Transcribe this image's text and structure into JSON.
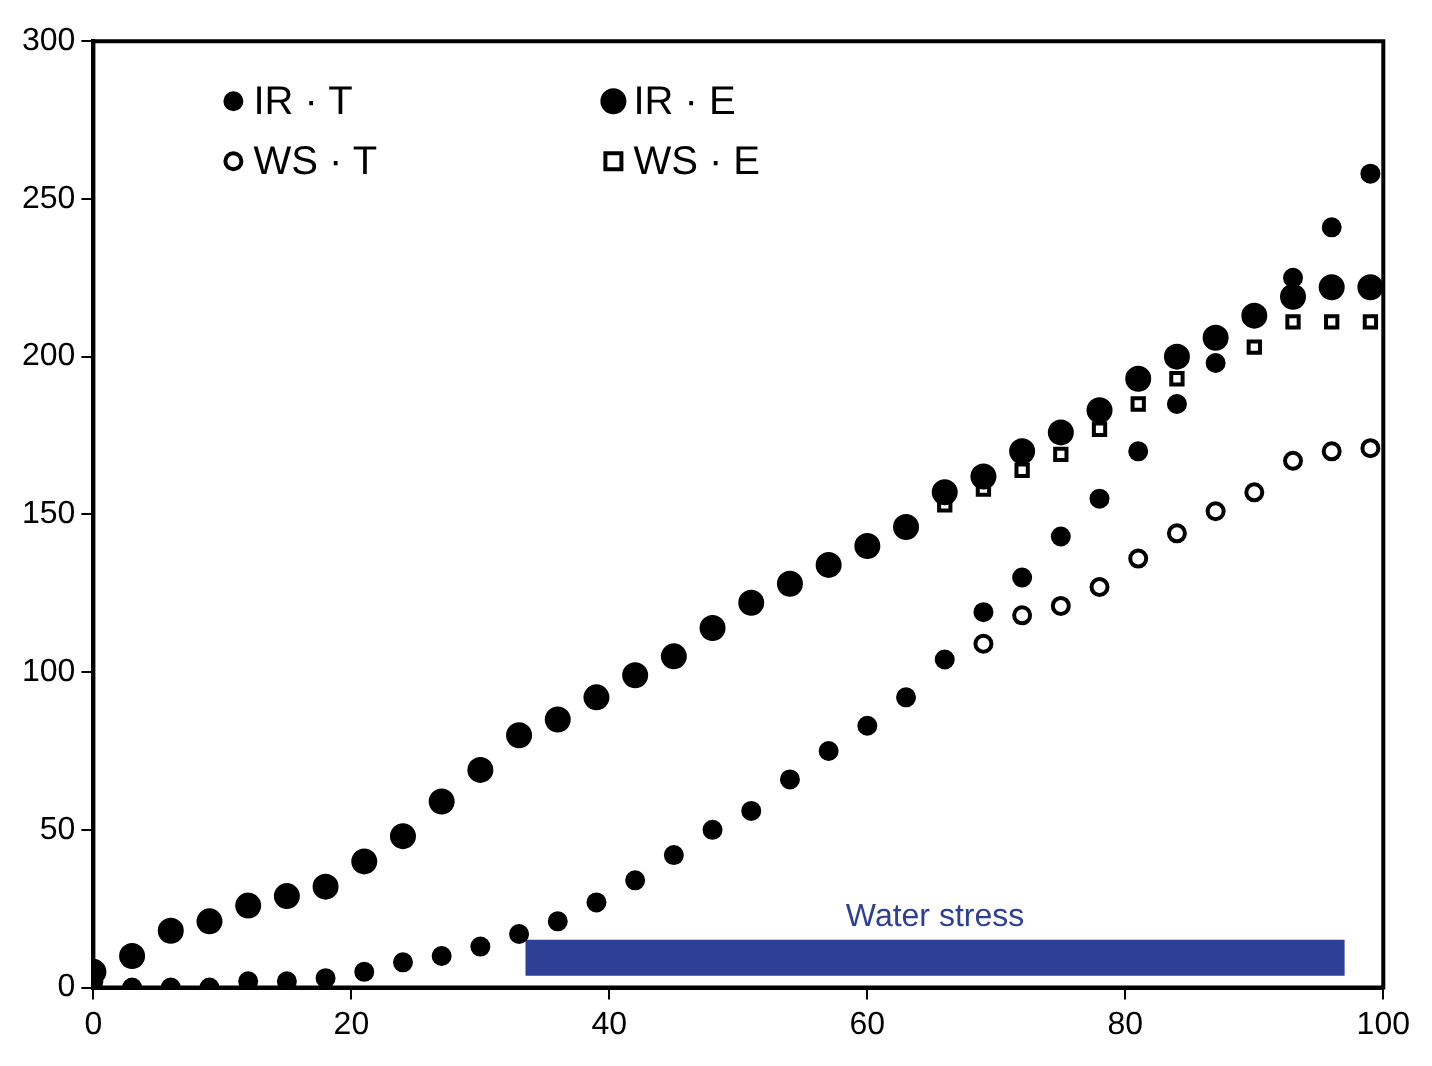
{
  "chart_data": {
    "type": "scatter",
    "x": [
      0,
      3,
      6,
      9,
      12,
      15,
      18,
      21,
      24,
      27,
      30,
      33,
      36,
      39,
      42,
      45,
      48,
      51,
      54,
      57,
      60,
      63,
      66,
      69,
      72,
      75,
      78,
      81,
      84,
      87,
      90,
      93,
      96,
      99
    ],
    "series": [
      {
        "name": "IR · T",
        "color": "#000000",
        "marker": "circle",
        "values": [
          2,
          0,
          0,
          0,
          2,
          2,
          3,
          5,
          8,
          10,
          13,
          17,
          21,
          27,
          34,
          42,
          50,
          56,
          66,
          75,
          83,
          92,
          104,
          119,
          130,
          143,
          155,
          170,
          185,
          198,
          null,
          225,
          241,
          258
        ]
      },
      {
        "name": "IR · E",
        "color": "#000000",
        "marker": "circle",
        "values": [
          5,
          10,
          18,
          21,
          26,
          29,
          32,
          40,
          48,
          59,
          69,
          80,
          85,
          92,
          99,
          105,
          114,
          122,
          128,
          134,
          140,
          146,
          157,
          162,
          170,
          176,
          183,
          193,
          200,
          206,
          213,
          219,
          222,
          222
        ]
      },
      {
        "name": "WS · T",
        "color": "#000000",
        "marker": "circle",
        "values": [
          null,
          null,
          null,
          null,
          null,
          null,
          null,
          null,
          null,
          null,
          null,
          null,
          null,
          null,
          null,
          null,
          null,
          null,
          null,
          null,
          null,
          null,
          null,
          109,
          118,
          121,
          127,
          136,
          144,
          151,
          157,
          167,
          170,
          171
        ]
      },
      {
        "name": "WS · E",
        "color": "#000000",
        "marker": "square",
        "values": [
          null,
          null,
          null,
          null,
          null,
          null,
          null,
          null,
          null,
          null,
          null,
          null,
          null,
          null,
          null,
          null,
          null,
          null,
          null,
          null,
          null,
          null,
          153,
          158,
          164,
          169,
          177,
          185,
          193,
          null,
          203,
          211,
          211,
          211
        ]
      },
      {
        "name": "Water stress",
        "type": "line",
        "color": "#2e3f96",
        "marker": "none",
        "x": [
          33.5,
          97
        ],
        "values": [
          9.5,
          9.5
        ]
      }
    ],
    "xlim": [
      0,
      100
    ],
    "xticks": [
      0,
      20,
      40,
      60,
      80,
      100
    ],
    "ylim": [
      0,
      300
    ],
    "yticks": [
      0,
      50,
      100,
      150,
      200,
      250,
      300
    ],
    "grid": false,
    "legend": "top left"
  }
}
